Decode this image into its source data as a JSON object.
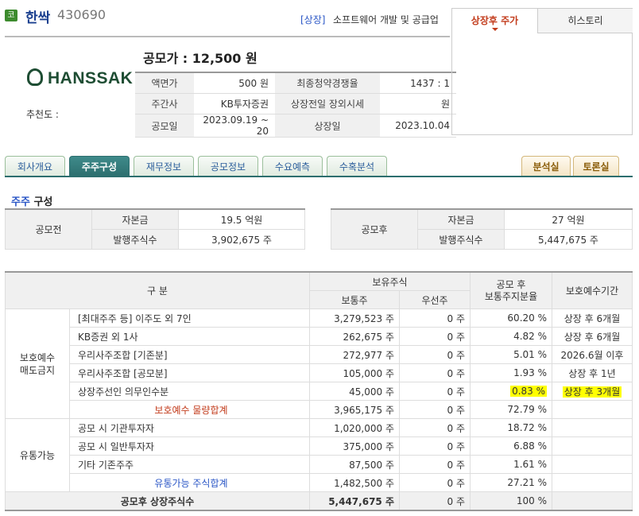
{
  "header": {
    "market_badge": "코",
    "company_name": "한싹",
    "company_code": "430690",
    "market": "[상장]",
    "industry": "소프트웨어 개발 및 공급업"
  },
  "logo": {
    "text": "HANSSAK",
    "icon": "hanssak-logo-icon"
  },
  "recommend_label": "추천도 :",
  "ipo_price": "공모가 : 12,500 원",
  "info": [
    [
      "액면가",
      "500 원",
      "최종청약경쟁율",
      "1437 : 1"
    ],
    [
      "주간사",
      "KB투자증권",
      "상장전일 장외시세",
      "원"
    ],
    [
      "공모일",
      "2023.09.19 ~ 20",
      "상장일",
      "2023.10.04"
    ]
  ],
  "right_panel": {
    "tab_active": "상장후 주가",
    "tab_other": "히스토리",
    "arrow_icon": "down-triangle-icon"
  },
  "tabs": [
    "회사개요",
    "주주구성",
    "재무정보",
    "공모정보",
    "수요예측",
    "수혹분석"
  ],
  "active_tab": "주주구성",
  "right_tabs": [
    "분석실",
    "토론실"
  ],
  "section_title": {
    "hl": "주주",
    "rest": " 구성"
  },
  "before": {
    "label": "공모전",
    "capital_label": "자본금",
    "capital": "19.5 억원",
    "shares_label": "발행주식수",
    "shares": "3,902,675 주"
  },
  "after": {
    "label": "공모후",
    "capital_label": "자본금",
    "capital": "27 억원",
    "shares_label": "발행주식수",
    "shares": "5,447,675 주"
  },
  "table": {
    "headers": {
      "gubun": "구      분",
      "holding": "보유주식",
      "common": "보통주",
      "preferred": "우선주",
      "ratio": "공모 후\n보통주지분율",
      "lockup": "보호예수기간"
    },
    "group1": "보호예수\n매도금지",
    "rows1": [
      [
        "[최대주주 등] 이주도 외 7인",
        "3,279,523 주",
        "0 주",
        "60.20 %",
        "상장 후 6개월"
      ],
      [
        "KB증권 외 1사",
        "262,675 주",
        "0 주",
        "4.82 %",
        "상장 후 6개월"
      ],
      [
        "우리사주조합 [기존분]",
        "272,977 주",
        "0 주",
        "5.01 %",
        "2026.6월 이후"
      ],
      [
        "우리사주조합 [공모분]",
        "105,000 주",
        "0 주",
        "1.93 %",
        "상장 후 1년"
      ],
      [
        "상장주선인 의무인수분",
        "45,000 주",
        "0 주",
        "0.83 %",
        "상장 후 3개월"
      ]
    ],
    "sub1": [
      "보호예수 물량합계",
      "3,965,175 주",
      "0 주",
      "72.79 %",
      ""
    ],
    "group2": "유통가능",
    "rows2": [
      [
        "공모 시 기관투자자",
        "1,020,000 주",
        "0 주",
        "18.72 %",
        ""
      ],
      [
        "공모 시 일반투자자",
        "375,000 주",
        "0 주",
        "6.88 %",
        ""
      ],
      [
        "기타 기존주주",
        "87,500 주",
        "0 주",
        "1.61 %",
        ""
      ]
    ],
    "sub2": [
      "유통가능 주식합계",
      "1,482,500 주",
      "0 주",
      "27.21 %",
      ""
    ],
    "total": [
      "공모후 상장주식수",
      "5,447,675 주",
      "0 주",
      "100 %",
      ""
    ]
  }
}
